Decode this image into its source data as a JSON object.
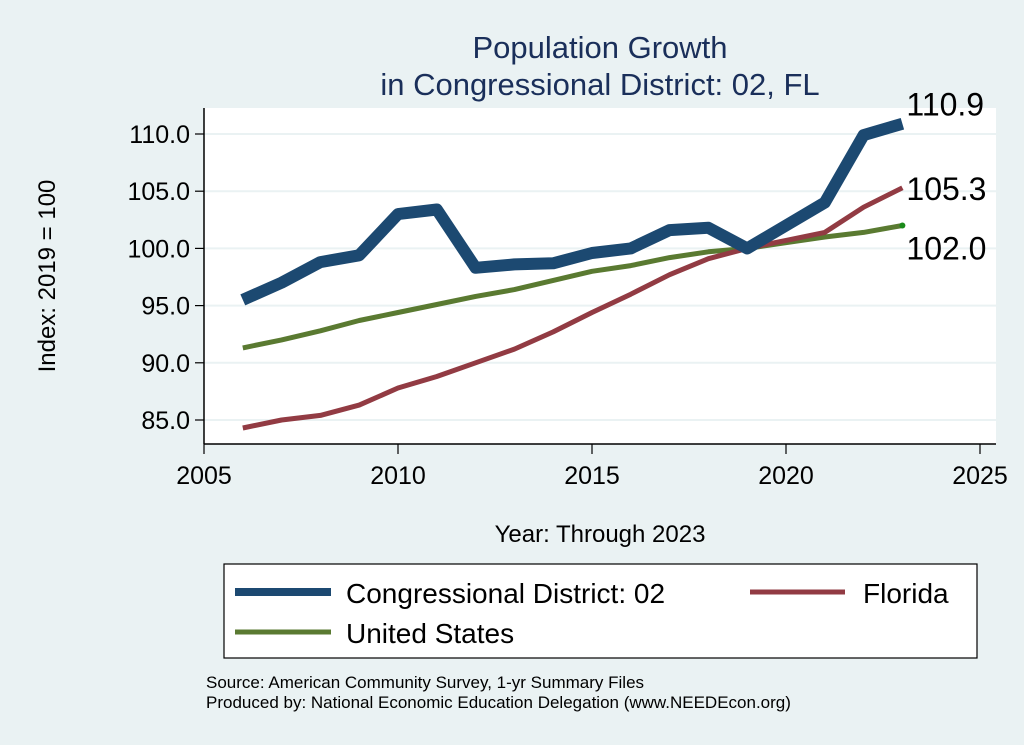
{
  "chart_data": {
    "type": "line",
    "title": [
      "Population Growth",
      "in Congressional District: 02, FL"
    ],
    "xlabel": "Year: Through 2023",
    "ylabel": "Index: 2019 = 100",
    "xlim": [
      2005,
      2025
    ],
    "ylim": [
      85,
      110
    ],
    "xticks": [
      2005,
      2010,
      2015,
      2020,
      2025
    ],
    "yticks": [
      85,
      90,
      95,
      100,
      105,
      110
    ],
    "ytick_labels": [
      "85.0",
      "90.0",
      "95.0",
      "100.0",
      "105.0",
      "110.0"
    ],
    "grid": true,
    "x": [
      2006,
      2007,
      2008,
      2009,
      2010,
      2011,
      2012,
      2013,
      2014,
      2015,
      2016,
      2017,
      2018,
      2019,
      2020,
      2021,
      2022,
      2023
    ],
    "series": [
      {
        "name": "Congressional District: 02",
        "color": "#1c4971",
        "values": [
          95.5,
          97.0,
          98.8,
          99.4,
          103.0,
          103.4,
          98.3,
          98.6,
          98.7,
          99.6,
          100.0,
          101.6,
          101.8,
          100.0,
          102.0,
          104.0,
          109.9,
          110.9
        ],
        "end_label": "110.9"
      },
      {
        "name": "Florida",
        "color": "#923b43",
        "values": [
          84.3,
          85.0,
          85.4,
          86.3,
          87.8,
          88.8,
          90.0,
          91.2,
          92.7,
          94.4,
          96.0,
          97.7,
          99.1,
          100.0,
          100.7,
          101.4,
          103.6,
          105.3
        ],
        "end_label": "105.3"
      },
      {
        "name": "United States",
        "color": "#5a7a31",
        "values": [
          91.3,
          92.0,
          92.8,
          93.7,
          94.4,
          95.1,
          95.8,
          96.4,
          97.2,
          98.0,
          98.5,
          99.2,
          99.7,
          100.0,
          100.5,
          101.0,
          101.4,
          102.0
        ],
        "end_label": "102.0"
      }
    ],
    "legend": {
      "placement": "bottom",
      "entries": [
        "Congressional District: 02",
        "Florida",
        "United States"
      ]
    },
    "notes": [
      "Source: American Community Survey, 1-yr Summary Files",
      "Produced by: National Economic Education Delegation (www.NEEDEcon.org)"
    ]
  }
}
